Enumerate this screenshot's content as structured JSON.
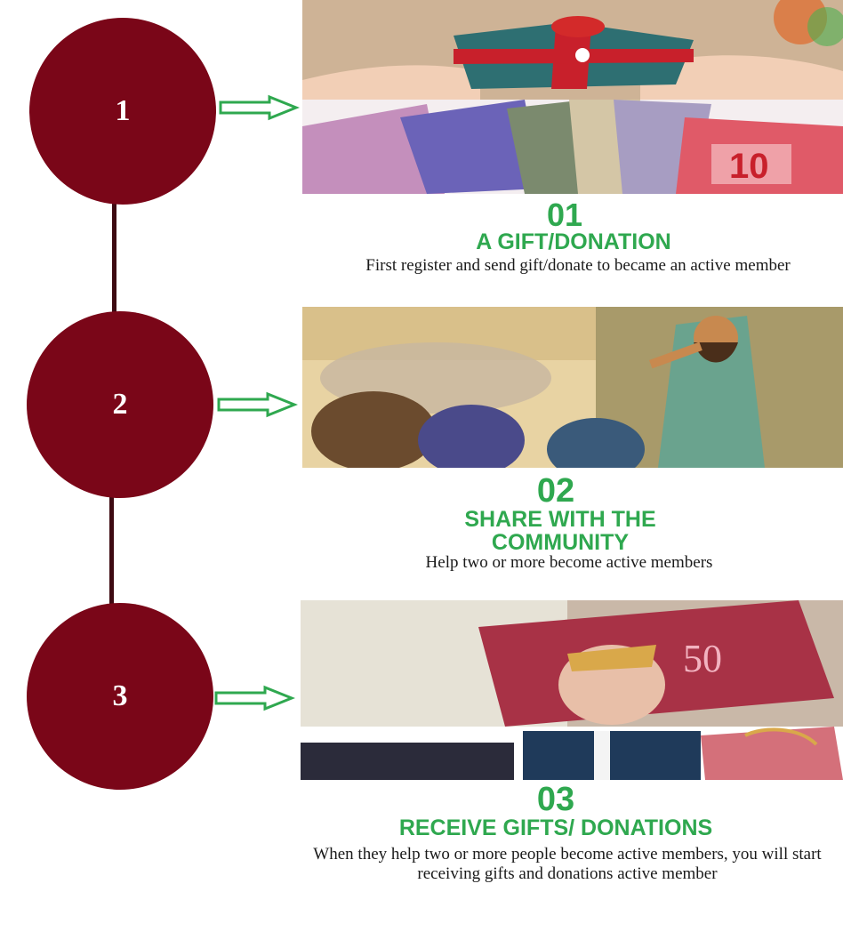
{
  "steps": [
    {
      "circle_label": "1",
      "number": "01",
      "title": "A GIFT/DONATION",
      "description": "First register and send gift/donate to became an active member"
    },
    {
      "circle_label": "2",
      "number": "02",
      "title": "SHARE WITH THE COMMUNITY",
      "description": "Help two or more become active members"
    },
    {
      "circle_label": "3",
      "number": "03",
      "title": "RECEIVE GIFTS/ DONATIONS",
      "description": "When they help two or more people become active members, you will start receiving gifts and donations active member"
    }
  ],
  "colors": {
    "circle": "#7a0618",
    "connector": "#3e0a12",
    "accent_green": "#2fa84f",
    "arrow_fill": "#ffffff"
  },
  "icons": [
    "right-arrow-icon"
  ]
}
